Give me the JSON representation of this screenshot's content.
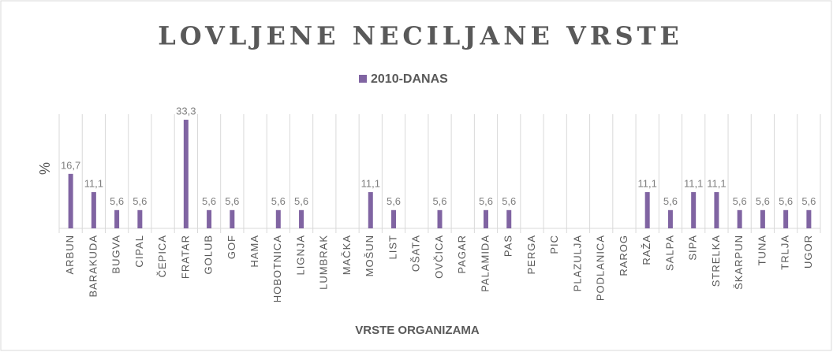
{
  "chart_data": {
    "type": "bar",
    "title": "LOVLJENE NECILJANE VRSTE",
    "x_label": "VRSTE ORGANIZAMA",
    "y_label": "%",
    "categories": [
      "ARBUN",
      "BARAKUDA",
      "BUGVA",
      "CIPAL",
      "ČEPICA",
      "FRATAR",
      "GOLUB",
      "GOF",
      "HAMA",
      "HOBOTNICA",
      "LIGNJA",
      "LUMBRAK",
      "MAČKA",
      "MOŠUN",
      "LIST",
      "OŠATA",
      "OVČICA",
      "PAGAR",
      "PALAMIDA",
      "PAS",
      "PERGA",
      "PIC",
      "PLAZULJA",
      "PODLANICA",
      "RAROG",
      "RAŽA",
      "SALPA",
      "SIPA",
      "STRELKA",
      "ŠKARPUN",
      "TUNA",
      "TRLJA",
      "UGOR"
    ],
    "series": [
      {
        "name": "2010-DANAS",
        "color": "#8064a2",
        "values": [
          16.7,
          11.1,
          5.6,
          5.6,
          0,
          33.3,
          5.6,
          5.6,
          0,
          5.6,
          5.6,
          0,
          0,
          11.1,
          5.6,
          0,
          5.6,
          0,
          5.6,
          5.6,
          0,
          0,
          0,
          0,
          0,
          11.1,
          5.6,
          11.1,
          11.1,
          5.6,
          5.6,
          5.6,
          5.6
        ],
        "value_labels": [
          "16,7",
          "11,1",
          "5,6",
          "5,6",
          null,
          "33,3",
          "5,6",
          "5,6",
          null,
          "5,6",
          "5,6",
          null,
          null,
          "11,1",
          "5,6",
          null,
          "5,6",
          null,
          "5,6",
          "5,6",
          null,
          null,
          null,
          null,
          null,
          "11,1",
          "5,6",
          "11,1",
          "11,1",
          "5,6",
          "5,6",
          "5,6",
          "5,6"
        ]
      }
    ],
    "ylim": [
      0,
      35
    ],
    "legend": "top"
  }
}
